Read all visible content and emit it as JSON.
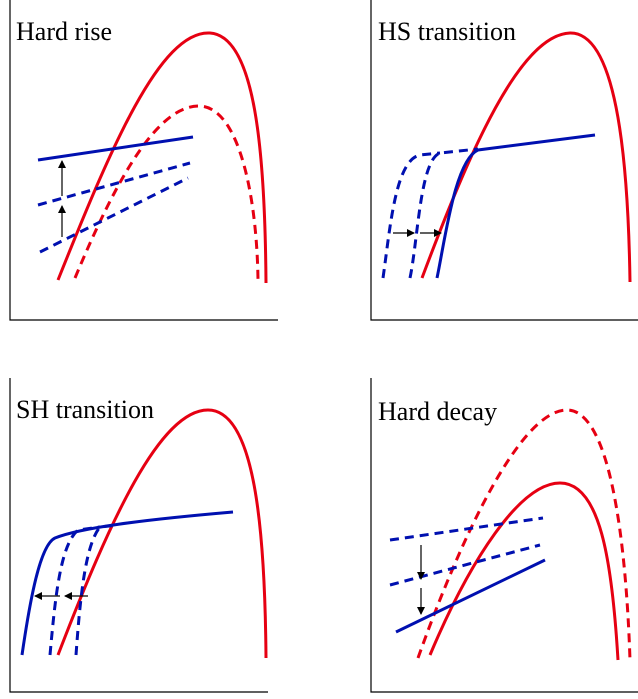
{
  "panels": [
    {
      "label": "Hard rise"
    },
    {
      "label": "HS transition"
    },
    {
      "label": "SH transition"
    },
    {
      "label": "Hard decay"
    }
  ]
}
